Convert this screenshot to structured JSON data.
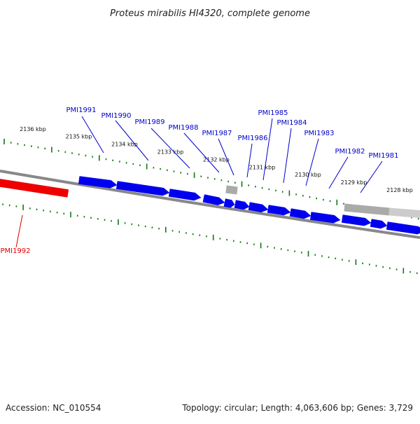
{
  "title": "Proteus mirabilis HI4320, complete genome",
  "footer": {
    "accession": "Accession: NC_010554",
    "topology": "Topology: circular; Length: 4,063,606 bp; Genes: 3,729"
  },
  "colors": {
    "forward_gene": "#0000ee",
    "reverse_gene": "#ee0000",
    "other_feature": "#aaaaaa",
    "backbone": "#888888",
    "ticks": "#117711",
    "label_forward": "#0000cc",
    "label_reverse": "#dd0000"
  },
  "scale": {
    "unit": "kbp",
    "labels": [
      {
        "kbp": 2128,
        "text": "2128 kbp"
      },
      {
        "kbp": 2129,
        "text": "2129 kbp"
      },
      {
        "kbp": 2130,
        "text": "2130 kbp"
      },
      {
        "kbp": 2131,
        "text": "2131 kbp"
      },
      {
        "kbp": 2132,
        "text": "2132 kbp"
      },
      {
        "kbp": 2133,
        "text": "2133 kbp"
      },
      {
        "kbp": 2134,
        "text": "2134 kbp"
      },
      {
        "kbp": 2135,
        "text": "2135 kbp"
      },
      {
        "kbp": 2136,
        "text": "2136 kbp"
      }
    ]
  },
  "genes": [
    {
      "id": "PMI1981",
      "label": "PMI1981",
      "strand": "+"
    },
    {
      "id": "PMI1982",
      "label": "PMI1982",
      "strand": "+"
    },
    {
      "id": "PMI1983",
      "label": "PMI1983",
      "strand": "+"
    },
    {
      "id": "PMI1984",
      "label": "PMI1984",
      "strand": "+"
    },
    {
      "id": "PMI1985",
      "label": "PMI1985",
      "strand": "+"
    },
    {
      "id": "PMI1986",
      "label": "PMI1986",
      "strand": "+"
    },
    {
      "id": "PMI1987",
      "label": "PMI1987",
      "strand": "+"
    },
    {
      "id": "PMI1988",
      "label": "PMI1988",
      "strand": "+"
    },
    {
      "id": "PMI1989",
      "label": "PMI1989",
      "strand": "+"
    },
    {
      "id": "PMI1990",
      "label": "PMI1990",
      "strand": "+"
    },
    {
      "id": "PMI1991",
      "label": "PMI1991",
      "strand": "+"
    },
    {
      "id": "PMI1992",
      "label": "PMI1992",
      "strand": "-"
    }
  ]
}
